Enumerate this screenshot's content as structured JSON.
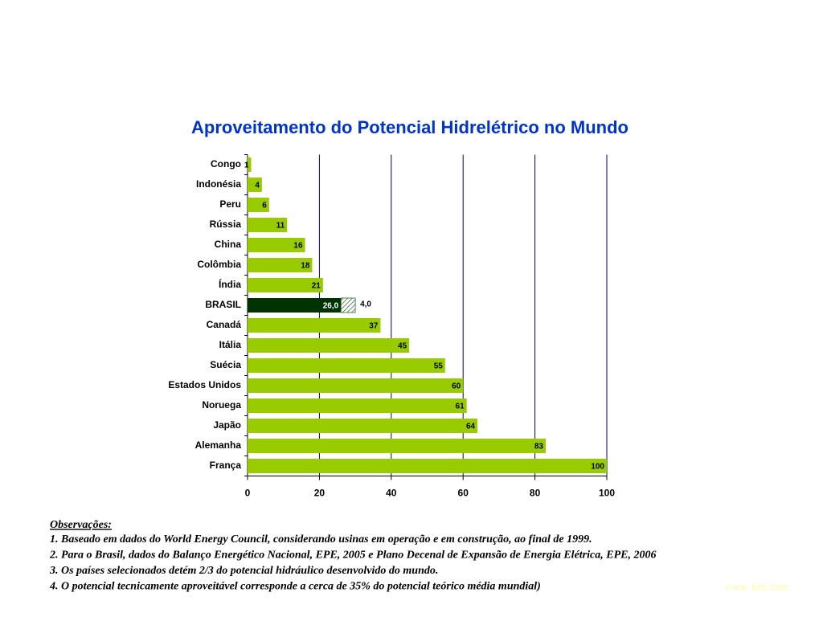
{
  "chart_data": {
    "type": "bar",
    "orientation": "horizontal",
    "title": "Aproveitamento do Potencial Hidrelétrico no Mundo",
    "categories": [
      "Congo",
      "Indonésia",
      "Peru",
      "Rússia",
      "China",
      "Colômbia",
      "Índia",
      "BRASIL",
      "Canadá",
      "Itália",
      "Suécia",
      "Estados Unidos",
      "Noruega",
      "Japão",
      "Alemanha",
      "França"
    ],
    "series": [
      {
        "values": [
          1,
          4,
          6,
          11,
          16,
          18,
          21,
          26,
          37,
          45,
          55,
          60,
          61,
          64,
          83,
          100
        ],
        "value_labels": [
          "1",
          "4",
          "6",
          "11",
          "16",
          "18",
          "21",
          "26,0",
          "37",
          "45",
          "55",
          "60",
          "61",
          "64",
          "83",
          "100"
        ],
        "colors": [
          "#99cc00",
          "#99cc00",
          "#99cc00",
          "#99cc00",
          "#99cc00",
          "#99cc00",
          "#99cc00",
          "#003300",
          "#99cc00",
          "#99cc00",
          "#99cc00",
          "#99cc00",
          "#99cc00",
          "#99cc00",
          "#99cc00",
          "#99cc00"
        ]
      },
      {
        "values": [
          null,
          null,
          null,
          null,
          null,
          null,
          null,
          4,
          null,
          null,
          null,
          null,
          null,
          null,
          null,
          null
        ],
        "value_labels": [
          null,
          null,
          null,
          null,
          null,
          null,
          null,
          "4,0",
          null,
          null,
          null,
          null,
          null,
          null,
          null,
          null
        ],
        "pattern": "hatch",
        "color": "#336633"
      }
    ],
    "xlim": [
      0,
      100
    ],
    "xticks": [
      0,
      20,
      40,
      60,
      80,
      100
    ],
    "grid": true,
    "notes_title": "Observações:",
    "notes": [
      "1. Baseado em dados do World Energy Council, considerando usinas em operação e em construção, ao final de 1999.",
      "2. Para o Brasil, dados do Balanço Energético Nacional, EPE, 2005 e Plano Decenal de Expansão de Energia Elétrica, EPE, 2006",
      "3. Os países selecionados detém 2/3 do potencial hidráulico desenvolvido do mundo.",
      "4. O potencial tecnicamente aproveitável corresponde a cerca de 35% do potencial teórico média mundial)"
    ],
    "source": "Fonte: EPE 2006"
  }
}
